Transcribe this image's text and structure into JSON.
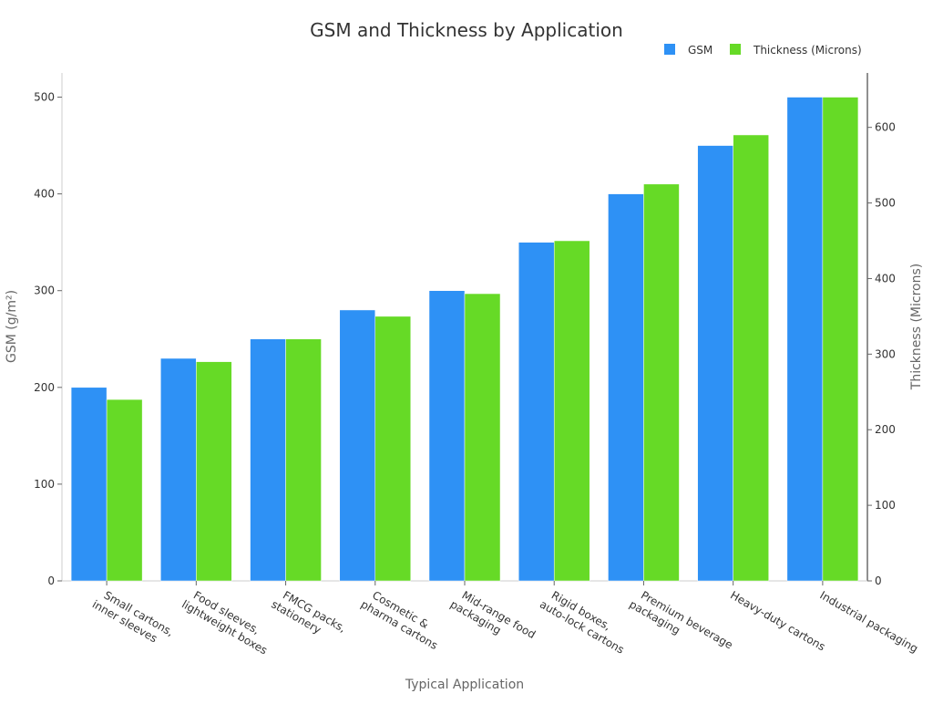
{
  "chart_data": {
    "type": "bar",
    "title": "GSM and Thickness by Application",
    "xlabel": "Typical Application",
    "ylabel": "GSM (g/m²)",
    "y2label": "Thickness (Microns)",
    "categories": [
      "Small cartons,\ninner sleeves",
      "Food sleeves,\nlightweight boxes",
      "FMCG packs,\nstationery",
      "Cosmetic &\npharma cartons",
      "Mid-range food\npackaging",
      "Rigid boxes,\nauto-lock cartons",
      "Premium beverage\npackaging",
      "Heavy-duty cartons",
      "Industrial packaging"
    ],
    "series": [
      {
        "name": "GSM",
        "axis": "left",
        "color": "#2e91f5",
        "values": [
          200,
          230,
          250,
          280,
          300,
          350,
          400,
          450,
          500
        ]
      },
      {
        "name": "Thickness (Microns)",
        "axis": "right",
        "color": "#66da26",
        "values": [
          240,
          290,
          320,
          350,
          380,
          450,
          525,
          590,
          640
        ]
      }
    ],
    "ylim": [
      0,
      525
    ],
    "y2lim": [
      0,
      672
    ],
    "yticks": [
      0,
      100,
      200,
      300,
      400,
      500
    ],
    "y2ticks": [
      0,
      100,
      200,
      300,
      400,
      500,
      600
    ],
    "legend": "top-right",
    "grid": false
  }
}
